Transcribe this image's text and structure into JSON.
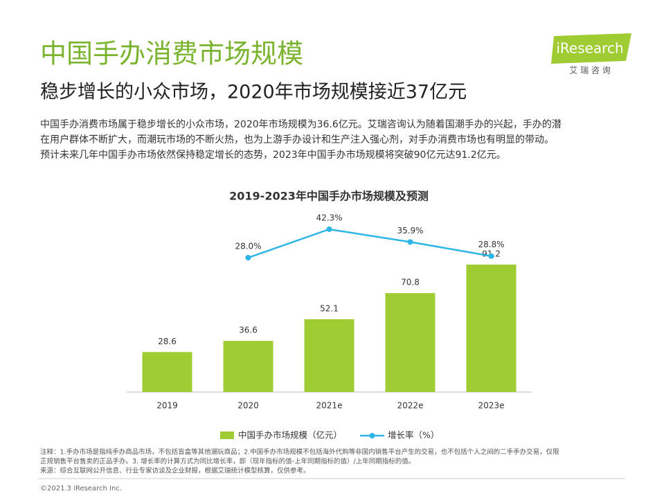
{
  "header": {
    "title": "中国手办消费市场规模",
    "subtitle": "稳步增长的小众市场，2020年市场规模接近37亿元"
  },
  "logo": {
    "brand": "iResearch",
    "cn": "艾 瑞 咨 询"
  },
  "paragraph": [
    "中国手办消费市场属于稳步增长的小众市场，2020年市场规模为36.6亿元。艾瑞咨询认为随着国潮手办的兴起，手办的潜",
    "在用户群体不断扩大，而潮玩市场的不断火热，也为上游手办设计和生产注入强心剂，对手办消费市场也有明显的带动。",
    "预计未来几年中国手办市场依然保持稳定增长的态势，2023年中国手办市场规模将突破90亿元达91.2亿元。"
  ],
  "chart_data": {
    "type": "bar",
    "title": "2019-2023年中国手办市场规模及预测",
    "categories": [
      "2019",
      "2020",
      "2021e",
      "2022e",
      "2023e"
    ],
    "series": [
      {
        "name": "中国手办市场规模（亿元）",
        "type": "bar",
        "color": "#9fcb33",
        "values": [
          28.6,
          36.6,
          52.1,
          70.8,
          91.2
        ]
      },
      {
        "name": "增长率（%）",
        "type": "line",
        "axis": "y2",
        "color": "#2cb5e6",
        "values": [
          null,
          28.0,
          42.3,
          35.9,
          28.8
        ],
        "value_labels": [
          null,
          "28.0%",
          "42.3%",
          "35.9%",
          "28.8%"
        ]
      }
    ]
  },
  "notes": [
    "注释：1.手办市场是指纯手办商品市场，不包括盲盒等其他潮玩商品；2.中国手办市场规模不包括海外代购等非国内销售平台产生的交易，也不包括个人之间的二手手办交易，仅限",
    "正规销售平台售卖的正品手办。3. 增长率的计算方式为同比增长率，即（现年指标的值-上年同期指标的值）/上年同期指标的值。",
    "来源：综合互联网公开信息、行业专家访谈及企业财报，根据艾瑞统计模型核算，仅供参考。"
  ],
  "copyright": "©2021.3 iResearch Inc."
}
